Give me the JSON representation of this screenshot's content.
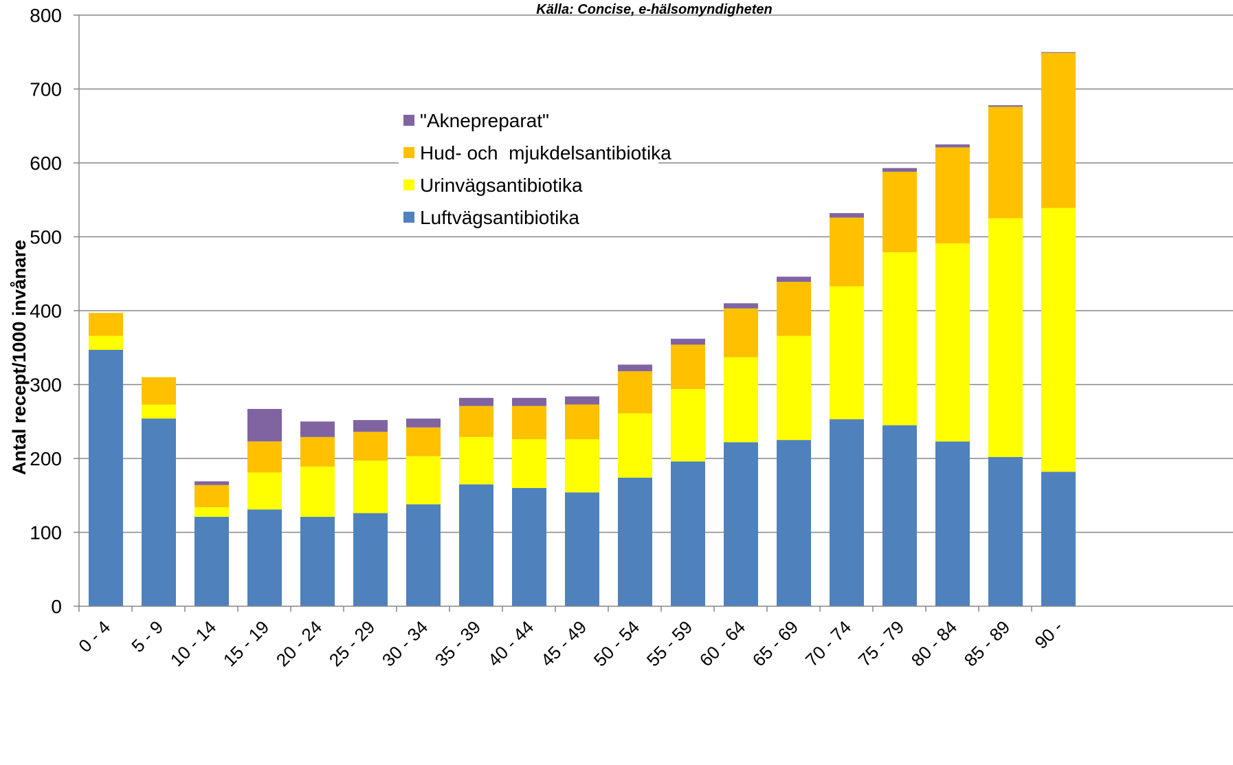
{
  "chart_data": {
    "type": "bar",
    "stacked": true,
    "source_note": "Källa: Concise, e-hälsomyndigheten",
    "ylabel": "Antal recept/1000 invånare",
    "ylim": [
      0,
      800
    ],
    "yticks": [
      0,
      100,
      200,
      300,
      400,
      500,
      600,
      700,
      800
    ],
    "grid": true,
    "legend_position": "upper-center",
    "categories": [
      "0 - 4",
      "5 - 9",
      "10 - 14",
      "15 - 19",
      "20 - 24",
      "25 - 29",
      "30 - 34",
      "35 - 39",
      "40 - 44",
      "45 - 49",
      "50 - 54",
      "55 - 59",
      "60 - 64",
      "65 - 69",
      "70 - 74",
      "75 - 79",
      "80 - 84",
      "85 - 89",
      "90 -"
    ],
    "series": [
      {
        "name": "Luftvägsantibiotika",
        "color": "#4F81BD",
        "values": [
          347,
          254,
          121,
          131,
          121,
          126,
          138,
          165,
          160,
          154,
          174,
          196,
          222,
          225,
          253,
          245,
          223,
          202,
          182
        ]
      },
      {
        "name": "Urinvägsantibiotika",
        "color": "#FFFF00",
        "values": [
          19,
          19,
          13,
          50,
          68,
          71,
          65,
          64,
          66,
          72,
          87,
          98,
          115,
          141,
          180,
          234,
          268,
          323,
          357
        ]
      },
      {
        "name": "Hud- och  mjukdelsantibiotika",
        "color": "#FFC000",
        "values": [
          31,
          37,
          30,
          42,
          40,
          39,
          39,
          42,
          45,
          47,
          57,
          60,
          66,
          73,
          93,
          109,
          130,
          151,
          210
        ]
      },
      {
        "name": "\"Aknepreparat\"",
        "color": "#8064A2",
        "values": [
          0,
          0,
          5,
          44,
          21,
          16,
          12,
          11,
          11,
          11,
          9,
          8,
          7,
          7,
          6,
          5,
          4,
          2,
          1
        ]
      }
    ],
    "legend_order": [
      "\"Aknepreparat\"",
      "Hud- och  mjukdelsantibiotika",
      "Urinvägsantibiotika",
      "Luftvägsantibiotika"
    ]
  }
}
